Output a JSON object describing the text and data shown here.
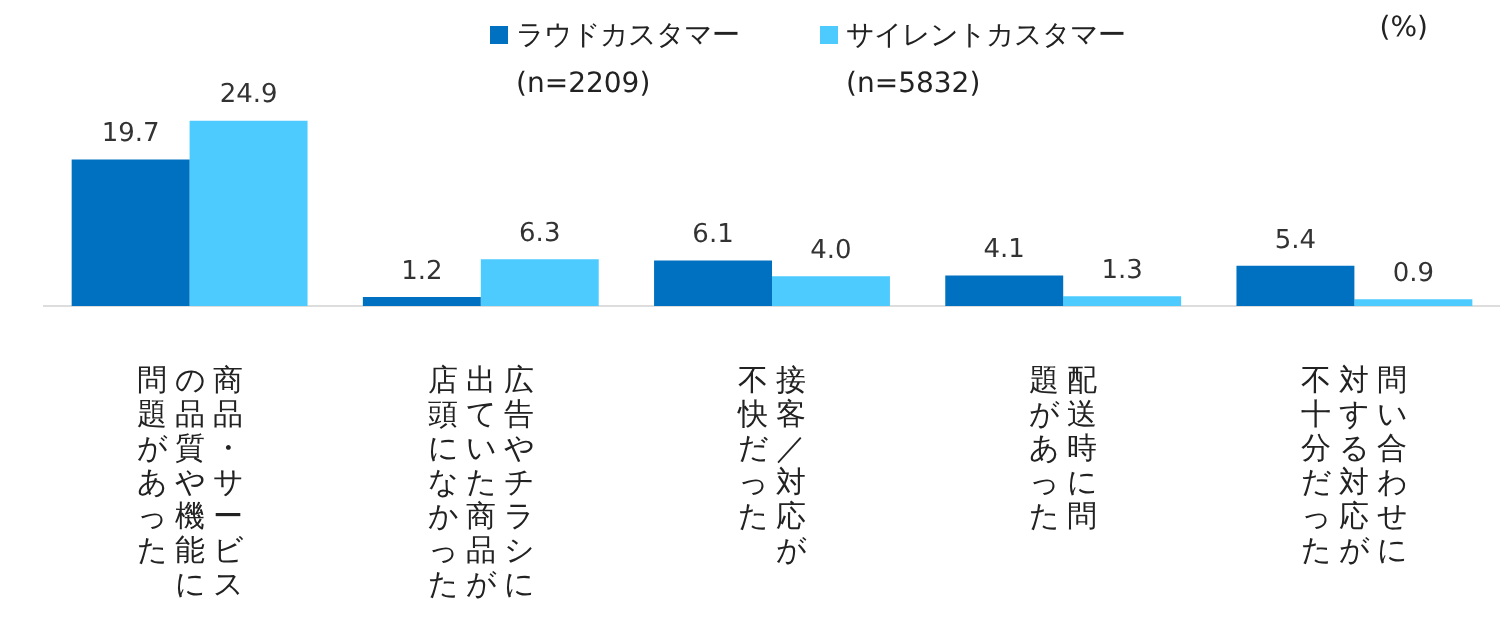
{
  "chart_data": {
    "type": "bar",
    "categories": [
      "商品・サービスの品質や機能に問題があった",
      "広告やチラシに出ていた商品が店頭になかった",
      "接客／対応が不快だった",
      "配送時に問題があった",
      "問い合わせに対する対応が不十分だった"
    ],
    "series": [
      {
        "name": "ラウドカスタマー\n(n=2209)",
        "color": "#0070c0",
        "values": [
          19.7,
          1.2,
          6.1,
          4.1,
          5.4
        ],
        "value_labels": [
          "19.7",
          "1.2",
          "6.1",
          "4.1",
          "5.4"
        ]
      },
      {
        "name": "サイレントカスタマー\n(n=5832)",
        "color": "#4dcbff",
        "values": [
          24.9,
          6.3,
          4.0,
          1.3,
          0.9
        ],
        "value_labels": [
          "24.9",
          "6.3",
          "4.0",
          "1.3",
          "0.9"
        ]
      }
    ],
    "grid": false,
    "legend": "top",
    "annotations": [
      "(%)"
    ]
  }
}
